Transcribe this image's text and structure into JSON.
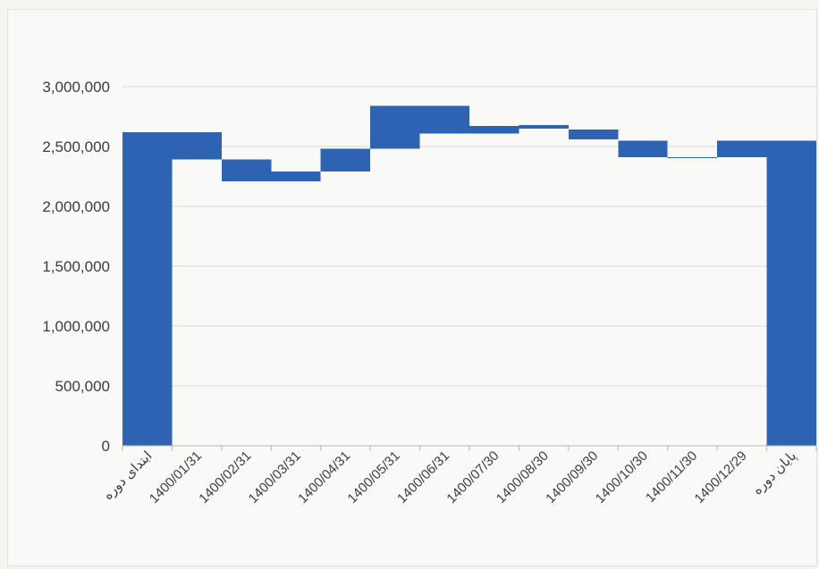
{
  "chart_data": {
    "type": "bar",
    "subtype": "waterfall",
    "title": "",
    "xlabel": "",
    "ylabel": "",
    "ylim": [
      0,
      3000000
    ],
    "yticks": [
      0,
      500000,
      1000000,
      1500000,
      2000000,
      2500000,
      3000000
    ],
    "ytick_labels": [
      "0",
      "500,000",
      "1,000,000",
      "1,500,000",
      "2,000,000",
      "2,500,000",
      "3,000,000"
    ],
    "grid": true,
    "bar_color": "#2e63b3",
    "categories": [
      "ابتدای دوره",
      "1400/01/31",
      "1400/02/31",
      "1400/03/31",
      "1400/04/31",
      "1400/05/31",
      "1400/06/31",
      "1400/07/30",
      "1400/08/30",
      "1400/09/30",
      "1400/10/30",
      "1400/11/30",
      "1400/12/29",
      "پایان دوره"
    ],
    "bars": [
      {
        "category": "ابتدای دوره",
        "low": 0,
        "high": 2620000
      },
      {
        "category": "1400/01/31",
        "low": 2390000,
        "high": 2620000
      },
      {
        "category": "1400/02/31",
        "low": 2210000,
        "high": 2390000
      },
      {
        "category": "1400/03/31",
        "low": 2210000,
        "high": 2290000
      },
      {
        "category": "1400/04/31",
        "low": 2290000,
        "high": 2480000
      },
      {
        "category": "1400/05/31",
        "low": 2480000,
        "high": 2840000
      },
      {
        "category": "1400/06/31",
        "low": 2610000,
        "high": 2840000
      },
      {
        "category": "1400/07/30",
        "low": 2610000,
        "high": 2670000
      },
      {
        "category": "1400/08/30",
        "low": 2650000,
        "high": 2680000
      },
      {
        "category": "1400/09/30",
        "low": 2560000,
        "high": 2640000
      },
      {
        "category": "1400/10/30",
        "low": 2410000,
        "high": 2550000
      },
      {
        "category": "1400/11/30",
        "low": 2405000,
        "high": 2412000
      },
      {
        "category": "1400/12/29",
        "low": 2410000,
        "high": 2550000
      },
      {
        "category": "پایان دوره",
        "low": 0,
        "high": 2550000
      }
    ]
  }
}
